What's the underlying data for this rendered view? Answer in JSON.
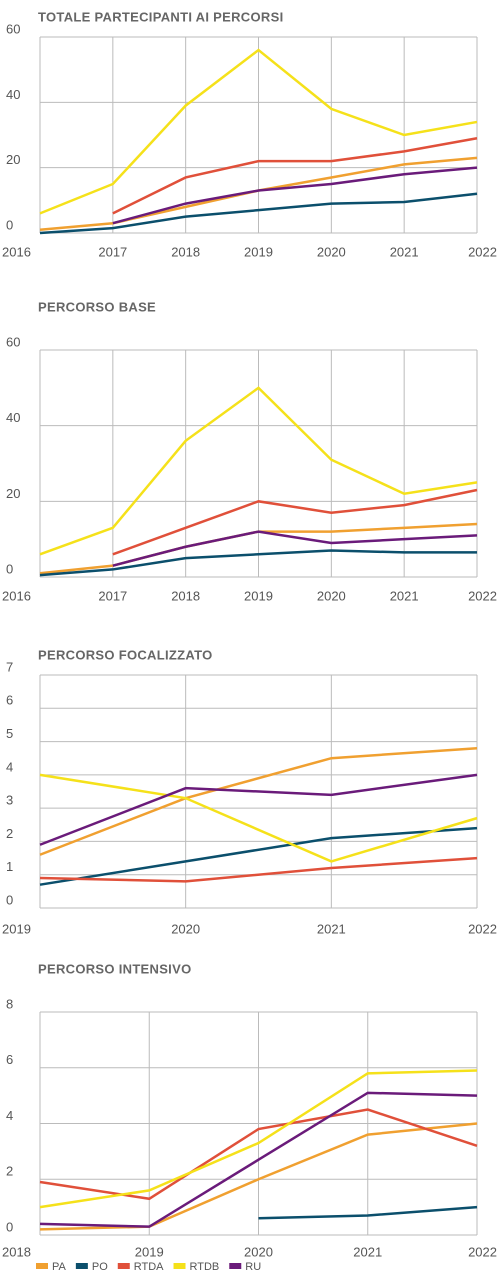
{
  "chart_data": [
    {
      "type": "line",
      "title": "TOTALE PARTECIPANTI AI PERCORSI",
      "categories": [
        "2016",
        "2017",
        "2018",
        "2019",
        "2020",
        "2021",
        "2022"
      ],
      "ylim": [
        0,
        60
      ],
      "yticks": [
        0,
        20,
        40,
        60
      ],
      "grid": true,
      "series": [
        {
          "name": "PA",
          "color": "#f0a030",
          "values": [
            1,
            3,
            8,
            13,
            17,
            21,
            23
          ]
        },
        {
          "name": "PO",
          "color": "#0b4f6c",
          "values": [
            0,
            1.5,
            5,
            7,
            9,
            9.5,
            12
          ]
        },
        {
          "name": "RTDA",
          "color": "#e0503a",
          "values": [
            null,
            6,
            17,
            22,
            22,
            25,
            29
          ]
        },
        {
          "name": "RTDB",
          "color": "#f5e11a",
          "values": [
            6,
            15,
            39,
            56,
            38,
            30,
            34
          ]
        },
        {
          "name": "RU",
          "color": "#6a1b7a",
          "values": [
            null,
            3,
            9,
            13,
            15,
            18,
            20
          ]
        }
      ]
    },
    {
      "type": "line",
      "title": "PERCORSO BASE",
      "categories": [
        "2016",
        "2017",
        "2018",
        "2019",
        "2020",
        "2021",
        "2022"
      ],
      "ylim": [
        0,
        60
      ],
      "yticks": [
        0,
        20,
        40,
        60
      ],
      "grid": true,
      "series": [
        {
          "name": "PA",
          "color": "#f0a030",
          "values": [
            1,
            3,
            8,
            12,
            12,
            13,
            14
          ]
        },
        {
          "name": "PO",
          "color": "#0b4f6c",
          "values": [
            0.5,
            2,
            5,
            6,
            7,
            6.5,
            6.5
          ]
        },
        {
          "name": "RTDA",
          "color": "#e0503a",
          "values": [
            null,
            6,
            13,
            20,
            17,
            19,
            23
          ]
        },
        {
          "name": "RTDB",
          "color": "#f5e11a",
          "values": [
            6,
            13,
            36,
            50,
            31,
            22,
            25
          ]
        },
        {
          "name": "RU",
          "color": "#6a1b7a",
          "values": [
            null,
            3,
            8,
            12,
            9,
            10,
            11
          ]
        }
      ]
    },
    {
      "type": "line",
      "title": "PERCORSO FOCALIZZATO",
      "categories": [
        "2019",
        "2020",
        "2021",
        "2022"
      ],
      "ylim": [
        0,
        7
      ],
      "yticks": [
        0,
        1,
        2,
        3,
        4,
        5,
        6,
        7
      ],
      "grid": true,
      "series": [
        {
          "name": "PA",
          "color": "#f0a030",
          "values": [
            1.6,
            3.3,
            4.5,
            4.8
          ]
        },
        {
          "name": "PO",
          "color": "#0b4f6c",
          "values": [
            0.7,
            1.4,
            2.1,
            2.4
          ]
        },
        {
          "name": "RTDA",
          "color": "#e0503a",
          "values": [
            0.9,
            0.8,
            1.2,
            1.5
          ]
        },
        {
          "name": "RTDB",
          "color": "#f5e11a",
          "values": [
            4,
            3.3,
            1.4,
            2.7
          ]
        },
        {
          "name": "RU",
          "color": "#6a1b7a",
          "values": [
            1.9,
            3.6,
            3.4,
            4
          ]
        }
      ]
    },
    {
      "type": "line",
      "title": "PERCORSO INTENSIVO",
      "categories": [
        "2018",
        "2019",
        "2020",
        "2021",
        "2022"
      ],
      "ylim": [
        0,
        8
      ],
      "yticks": [
        0,
        2,
        4,
        6,
        8
      ],
      "grid": true,
      "series": [
        {
          "name": "PA",
          "color": "#f0a030",
          "values": [
            0.2,
            0.3,
            2,
            3.6,
            4
          ]
        },
        {
          "name": "PO",
          "color": "#0b4f6c",
          "values": [
            null,
            null,
            0.6,
            0.7,
            1
          ]
        },
        {
          "name": "RTDA",
          "color": "#e0503a",
          "values": [
            1.9,
            1.3,
            3.8,
            4.5,
            3.2
          ]
        },
        {
          "name": "RTDB",
          "color": "#f5e11a",
          "values": [
            1,
            1.6,
            3.3,
            5.8,
            5.9
          ]
        },
        {
          "name": "RU",
          "color": "#6a1b7a",
          "values": [
            0.4,
            0.3,
            2.7,
            5.1,
            5
          ]
        }
      ]
    }
  ]
}
